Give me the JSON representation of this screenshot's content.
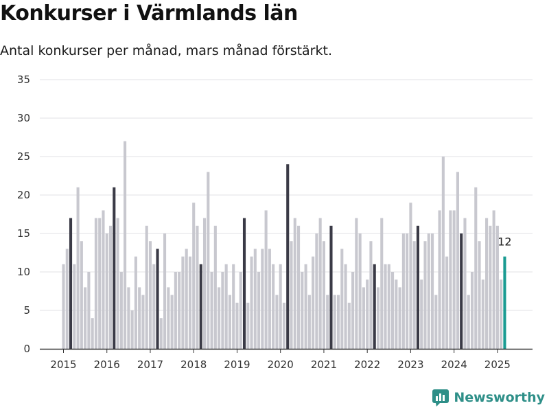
{
  "title": "Konkurser i Värmlands län",
  "subtitle": "Antal konkurser per månad, mars månad förstärkt.",
  "brand": {
    "name": "Newsworthy",
    "icon": "newsworthy-logo-icon"
  },
  "colors": {
    "base": "#c8c8cf",
    "march": "#3a3a46",
    "latest": "#1a9b92",
    "grid": "#e2e2e6",
    "axis": "#333333"
  },
  "chart_data": {
    "type": "bar",
    "title": "Konkurser i Värmlands län",
    "subtitle": "Antal konkurser per månad, mars månad förstärkt.",
    "xlabel": "",
    "ylabel": "",
    "ylim": [
      0,
      35
    ],
    "yticks": [
      0,
      5,
      10,
      15,
      20,
      25,
      30,
      35
    ],
    "xticks": [
      "2015",
      "2016",
      "2017",
      "2018",
      "2019",
      "2020",
      "2021",
      "2022",
      "2023",
      "2024",
      "2025"
    ],
    "grid": true,
    "legend": "none",
    "start_month": "2015-01",
    "highlight": "march",
    "latest_label": "12",
    "values": [
      11,
      13,
      17,
      11,
      21,
      14,
      8,
      10,
      4,
      17,
      17,
      18,
      15,
      16,
      21,
      17,
      10,
      27,
      8,
      5,
      12,
      8,
      7,
      16,
      14,
      11,
      13,
      4,
      15,
      8,
      7,
      10,
      10,
      12,
      13,
      12,
      19,
      16,
      11,
      17,
      23,
      10,
      16,
      8,
      10,
      11,
      7,
      11,
      6,
      10,
      17,
      6,
      12,
      13,
      10,
      13,
      18,
      13,
      11,
      7,
      11,
      6,
      24,
      14,
      17,
      16,
      10,
      11,
      7,
      12,
      15,
      17,
      14,
      7,
      16,
      7,
      7,
      13,
      11,
      6,
      10,
      17,
      15,
      8,
      9,
      14,
      11,
      8,
      17,
      11,
      11,
      10,
      9,
      8,
      15,
      15,
      19,
      14,
      16,
      9,
      14,
      15,
      15,
      7,
      18,
      25,
      12,
      18,
      18,
      23,
      15,
      17,
      7,
      10,
      21,
      14,
      9,
      17,
      16,
      18,
      16,
      9,
      12
    ]
  }
}
